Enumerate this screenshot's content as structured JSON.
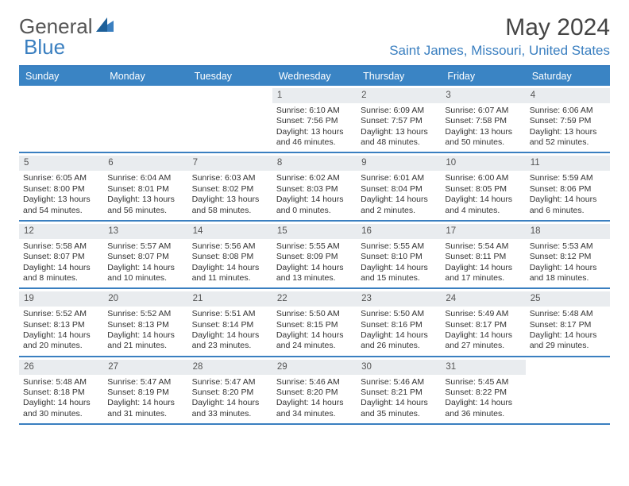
{
  "logo": {
    "text1": "General",
    "text2": "Blue"
  },
  "title": "May 2024",
  "location": "Saint James, Missouri, United States",
  "colors": {
    "accent": "#3a84c4",
    "border": "#3a7fc0",
    "daynum_bg": "#e9ecef",
    "text": "#333333",
    "logo_gray": "#555555",
    "logo_blue": "#3a7fc0",
    "location_color": "#3a7fc0"
  },
  "dow": [
    "Sunday",
    "Monday",
    "Tuesday",
    "Wednesday",
    "Thursday",
    "Friday",
    "Saturday"
  ],
  "weeks": [
    [
      {
        "num": "",
        "text": ""
      },
      {
        "num": "",
        "text": ""
      },
      {
        "num": "",
        "text": ""
      },
      {
        "num": "1",
        "text": "Sunrise: 6:10 AM\nSunset: 7:56 PM\nDaylight: 13 hours and 46 minutes."
      },
      {
        "num": "2",
        "text": "Sunrise: 6:09 AM\nSunset: 7:57 PM\nDaylight: 13 hours and 48 minutes."
      },
      {
        "num": "3",
        "text": "Sunrise: 6:07 AM\nSunset: 7:58 PM\nDaylight: 13 hours and 50 minutes."
      },
      {
        "num": "4",
        "text": "Sunrise: 6:06 AM\nSunset: 7:59 PM\nDaylight: 13 hours and 52 minutes."
      }
    ],
    [
      {
        "num": "5",
        "text": "Sunrise: 6:05 AM\nSunset: 8:00 PM\nDaylight: 13 hours and 54 minutes."
      },
      {
        "num": "6",
        "text": "Sunrise: 6:04 AM\nSunset: 8:01 PM\nDaylight: 13 hours and 56 minutes."
      },
      {
        "num": "7",
        "text": "Sunrise: 6:03 AM\nSunset: 8:02 PM\nDaylight: 13 hours and 58 minutes."
      },
      {
        "num": "8",
        "text": "Sunrise: 6:02 AM\nSunset: 8:03 PM\nDaylight: 14 hours and 0 minutes."
      },
      {
        "num": "9",
        "text": "Sunrise: 6:01 AM\nSunset: 8:04 PM\nDaylight: 14 hours and 2 minutes."
      },
      {
        "num": "10",
        "text": "Sunrise: 6:00 AM\nSunset: 8:05 PM\nDaylight: 14 hours and 4 minutes."
      },
      {
        "num": "11",
        "text": "Sunrise: 5:59 AM\nSunset: 8:06 PM\nDaylight: 14 hours and 6 minutes."
      }
    ],
    [
      {
        "num": "12",
        "text": "Sunrise: 5:58 AM\nSunset: 8:07 PM\nDaylight: 14 hours and 8 minutes."
      },
      {
        "num": "13",
        "text": "Sunrise: 5:57 AM\nSunset: 8:07 PM\nDaylight: 14 hours and 10 minutes."
      },
      {
        "num": "14",
        "text": "Sunrise: 5:56 AM\nSunset: 8:08 PM\nDaylight: 14 hours and 11 minutes."
      },
      {
        "num": "15",
        "text": "Sunrise: 5:55 AM\nSunset: 8:09 PM\nDaylight: 14 hours and 13 minutes."
      },
      {
        "num": "16",
        "text": "Sunrise: 5:55 AM\nSunset: 8:10 PM\nDaylight: 14 hours and 15 minutes."
      },
      {
        "num": "17",
        "text": "Sunrise: 5:54 AM\nSunset: 8:11 PM\nDaylight: 14 hours and 17 minutes."
      },
      {
        "num": "18",
        "text": "Sunrise: 5:53 AM\nSunset: 8:12 PM\nDaylight: 14 hours and 18 minutes."
      }
    ],
    [
      {
        "num": "19",
        "text": "Sunrise: 5:52 AM\nSunset: 8:13 PM\nDaylight: 14 hours and 20 minutes."
      },
      {
        "num": "20",
        "text": "Sunrise: 5:52 AM\nSunset: 8:13 PM\nDaylight: 14 hours and 21 minutes."
      },
      {
        "num": "21",
        "text": "Sunrise: 5:51 AM\nSunset: 8:14 PM\nDaylight: 14 hours and 23 minutes."
      },
      {
        "num": "22",
        "text": "Sunrise: 5:50 AM\nSunset: 8:15 PM\nDaylight: 14 hours and 24 minutes."
      },
      {
        "num": "23",
        "text": "Sunrise: 5:50 AM\nSunset: 8:16 PM\nDaylight: 14 hours and 26 minutes."
      },
      {
        "num": "24",
        "text": "Sunrise: 5:49 AM\nSunset: 8:17 PM\nDaylight: 14 hours and 27 minutes."
      },
      {
        "num": "25",
        "text": "Sunrise: 5:48 AM\nSunset: 8:17 PM\nDaylight: 14 hours and 29 minutes."
      }
    ],
    [
      {
        "num": "26",
        "text": "Sunrise: 5:48 AM\nSunset: 8:18 PM\nDaylight: 14 hours and 30 minutes."
      },
      {
        "num": "27",
        "text": "Sunrise: 5:47 AM\nSunset: 8:19 PM\nDaylight: 14 hours and 31 minutes."
      },
      {
        "num": "28",
        "text": "Sunrise: 5:47 AM\nSunset: 8:20 PM\nDaylight: 14 hours and 33 minutes."
      },
      {
        "num": "29",
        "text": "Sunrise: 5:46 AM\nSunset: 8:20 PM\nDaylight: 14 hours and 34 minutes."
      },
      {
        "num": "30",
        "text": "Sunrise: 5:46 AM\nSunset: 8:21 PM\nDaylight: 14 hours and 35 minutes."
      },
      {
        "num": "31",
        "text": "Sunrise: 5:45 AM\nSunset: 8:22 PM\nDaylight: 14 hours and 36 minutes."
      },
      {
        "num": "",
        "text": ""
      }
    ]
  ]
}
